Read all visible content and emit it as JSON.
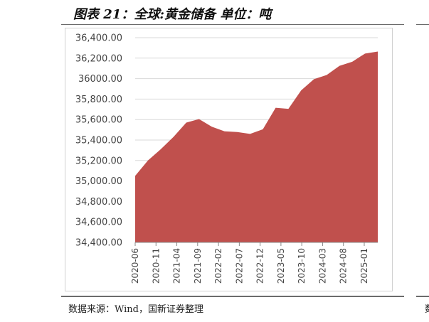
{
  "header": {
    "title": "图表 21：全球:黄金储备  单位：吨"
  },
  "footer": {
    "source": "数据来源：Wind，国新证券整理",
    "edge_glyph": "数"
  },
  "colors": {
    "area_fill": "#c0504d",
    "gridline": "#d9d9d9",
    "axis": "#888888"
  },
  "chart_data": {
    "type": "area",
    "title": "全球:黄金储备",
    "unit": "吨",
    "xlabel": "",
    "ylabel": "",
    "ylim": [
      34400,
      36400
    ],
    "y_ticks": [
      36400,
      36200,
      36000,
      35800,
      35600,
      35400,
      35200,
      35000,
      34800,
      34600,
      34400
    ],
    "y_tick_labels": [
      "36,400.00",
      "36,200.00",
      "36000.00",
      "35,800.00",
      "35,600.00",
      "35,400.00",
      "35,200.00",
      "35,000.00",
      "34,800.00",
      "34,600.00",
      "34,400.00"
    ],
    "x_tick_labels": [
      "2020-06",
      "2020-11",
      "2021-04",
      "2021-09",
      "2022-02",
      "2022-07",
      "2022-12",
      "2023-05",
      "2023-10",
      "2024-03",
      "2024-08",
      "2025-01"
    ],
    "grid": true,
    "legend": "none",
    "series": [
      {
        "name": "全球:黄金储备",
        "x": [
          "2020-06",
          "2020-09",
          "2020-12",
          "2021-03",
          "2021-06",
          "2021-09",
          "2021-12",
          "2022-03",
          "2022-06",
          "2022-09",
          "2022-12",
          "2023-03",
          "2023-06",
          "2023-09",
          "2023-12",
          "2024-03",
          "2024-06",
          "2024-09",
          "2024-12",
          "2025-03"
        ],
        "values": [
          35050,
          35200,
          35310,
          35430,
          35570,
          35605,
          35530,
          35485,
          35478,
          35460,
          35505,
          35715,
          35705,
          35885,
          35995,
          36035,
          36125,
          36165,
          36245,
          36265
        ]
      }
    ]
  }
}
